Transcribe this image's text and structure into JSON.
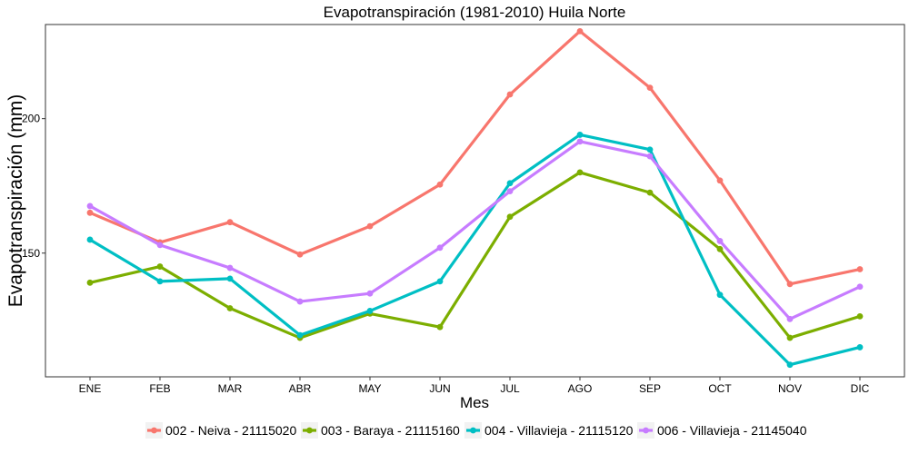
{
  "chart_data": {
    "type": "line",
    "title": "Evapotranspiración (1981-2010)  Huila Norte",
    "xlabel": "Mes",
    "ylabel": "Evapotranspiración  (mm)",
    "categories": [
      "ENE",
      "FEB",
      "MAR",
      "ABR",
      "MAY",
      "JUN",
      "JUL",
      "AGO",
      "SEP",
      "OCT",
      "NOV",
      "DIC"
    ],
    "ylim": [
      104,
      235
    ],
    "yticks": [
      150,
      200
    ],
    "grid": false,
    "legend": "bottom",
    "series": [
      {
        "name": "002 - Neiva - 21115020",
        "color": "#F8766D",
        "values": [
          165,
          154,
          161.5,
          149.5,
          160,
          175.5,
          209,
          232.5,
          211.5,
          177,
          138.5,
          144
        ]
      },
      {
        "name": "003 - Baraya - 21115160",
        "color": "#7CAE00",
        "values": [
          139,
          145,
          129.5,
          118.5,
          127.5,
          122.5,
          163.5,
          180,
          172.5,
          151.5,
          118.5,
          126.5
        ]
      },
      {
        "name": "004 - Villavieja - 21115120",
        "color": "#00BFC4",
        "values": [
          155,
          139.5,
          140.5,
          119.5,
          128.5,
          139.5,
          176,
          194,
          188.5,
          134.5,
          108.5,
          115
        ]
      },
      {
        "name": "006 - Villavieja - 21145040",
        "color": "#C77CFF",
        "values": [
          167.5,
          153,
          144.5,
          132,
          135,
          152,
          173,
          191.5,
          186,
          154.5,
          125.5,
          137.5
        ]
      }
    ]
  }
}
